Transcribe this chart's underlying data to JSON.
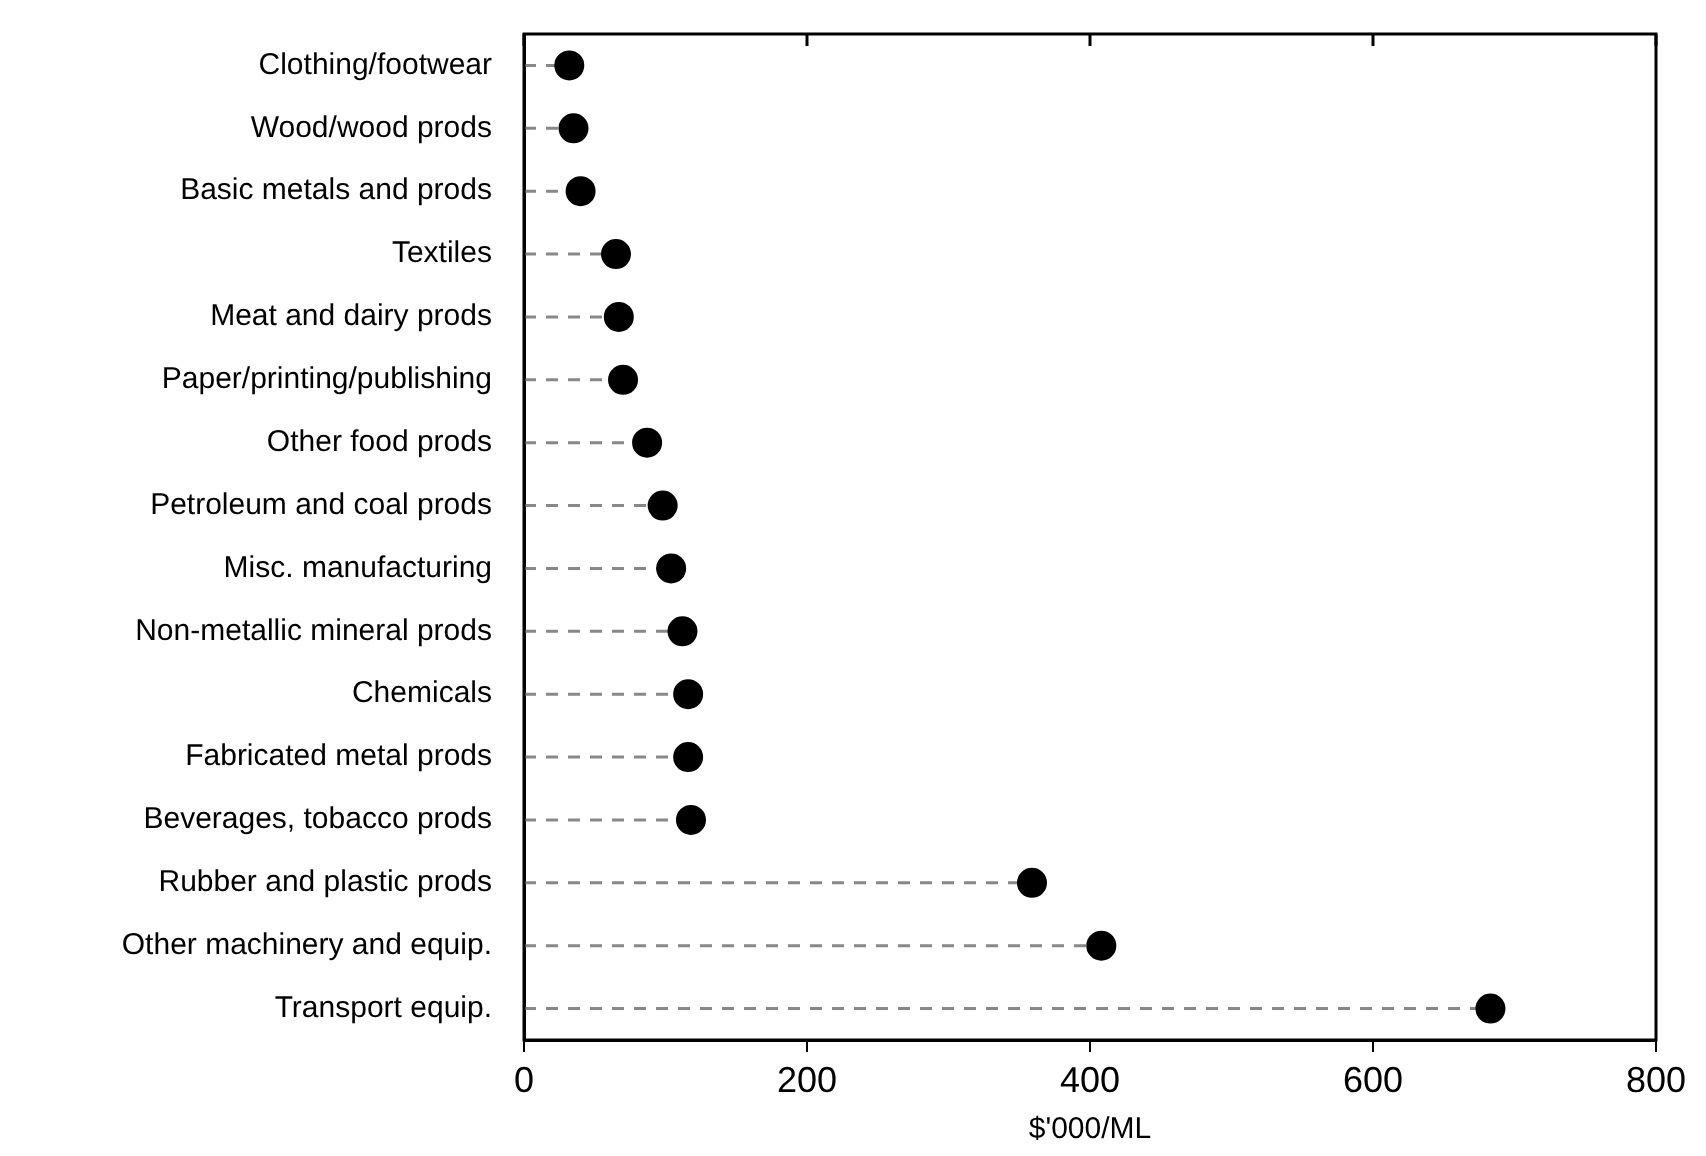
{
  "chart_data": {
    "type": "lollipop",
    "orientation": "horizontal",
    "categories": [
      "Clothing/footwear",
      "Wood/wood prods",
      "Basic metals and prods",
      "Textiles",
      "Meat and dairy prods",
      "Paper/printing/publishing",
      "Other food prods",
      "Petroleum and coal prods",
      "Misc. manufacturing",
      "Non-metallic mineral prods",
      "Chemicals",
      "Fabricated metal prods",
      "Beverages, tobacco prods",
      "Rubber and plastic prods",
      "Other machinery and equip.",
      "Transport equip."
    ],
    "values": [
      32,
      35,
      40,
      65,
      67,
      70,
      87,
      98,
      104,
      112,
      116,
      116,
      118,
      359,
      408,
      683
    ],
    "color": "#000000",
    "xlabel": "$'000/ML",
    "xlim": [
      0,
      800
    ],
    "xticks": [
      0,
      200,
      400,
      600,
      800
    ],
    "grid": false,
    "marker": "circle",
    "line_style": "dashed"
  }
}
